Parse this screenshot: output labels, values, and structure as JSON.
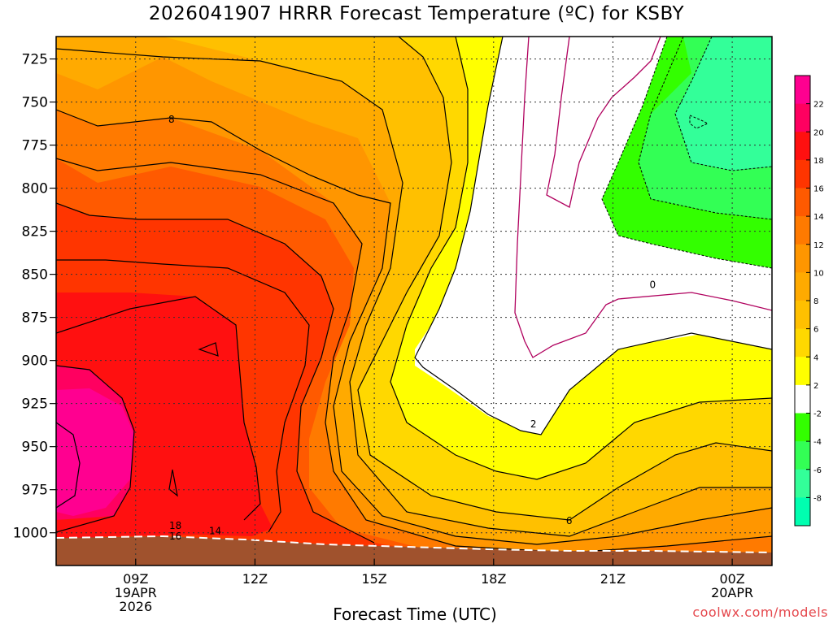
{
  "title": "2026041907 HRRR Forecast Temperature (ºC) for KSBY",
  "xlabel": "Forecast Time (UTC)",
  "credit": "coolwx.com/models",
  "chart_data": {
    "type": "heatmap",
    "x_ticks": [
      {
        "hour": 9,
        "lines": [
          "09Z",
          "19APR",
          "2026"
        ]
      },
      {
        "hour": 12,
        "lines": [
          "12Z"
        ]
      },
      {
        "hour": 15,
        "lines": [
          "15Z"
        ]
      },
      {
        "hour": 18,
        "lines": [
          "18Z"
        ]
      },
      {
        "hour": 21,
        "lines": [
          "21Z"
        ]
      },
      {
        "hour": 24,
        "lines": [
          "00Z",
          "20APR"
        ]
      }
    ],
    "x_range_hours": [
      7,
      25
    ],
    "y_ticks_hpa": [
      725,
      750,
      775,
      800,
      825,
      850,
      875,
      900,
      925,
      950,
      975,
      1000
    ],
    "y_range_hpa": [
      712,
      1019
    ],
    "colorbar": {
      "ticks": [
        22,
        20,
        18,
        16,
        14,
        12,
        10,
        8,
        6,
        4,
        2,
        -2,
        -4,
        -6,
        -8
      ],
      "colors": [
        "#ff0090",
        "#ff0060",
        "#ff1010",
        "#ff3500",
        "#ff5a00",
        "#ff7a00",
        "#ff9600",
        "#ffaa00",
        "#ffc000",
        "#ffd800",
        "#ffff00",
        "#ffffff",
        "#33ff00",
        "#33ff55",
        "#33ff99",
        "#00ffb0"
      ]
    },
    "contour_labels": [
      {
        "value": "8",
        "hour": 9.9,
        "hpa": 760
      },
      {
        "value": "0",
        "hour": 22.0,
        "hpa": 856
      },
      {
        "value": "2",
        "hour": 19.0,
        "hpa": 937
      },
      {
        "value": "6",
        "hour": 19.9,
        "hpa": 993
      },
      {
        "value": "18",
        "hour": 10.0,
        "hpa": 996
      },
      {
        "value": "16",
        "hour": 10.0,
        "hpa": 1002
      },
      {
        "value": "14",
        "hour": 11.0,
        "hpa": 999
      }
    ],
    "series": []
  }
}
